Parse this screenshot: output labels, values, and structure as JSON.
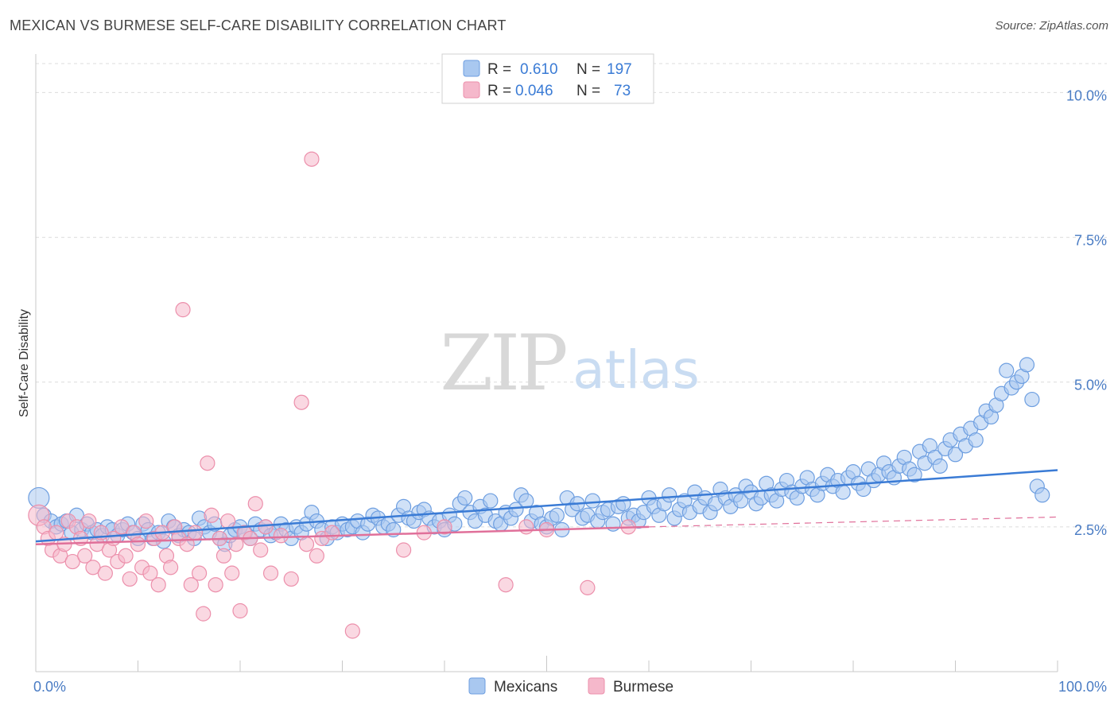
{
  "title": "MEXICAN VS BURMESE SELF-CARE DISABILITY CORRELATION CHART",
  "source": "Source: ZipAtlas.com",
  "watermark": {
    "zip": "ZIP",
    "atlas": "atlas"
  },
  "colors": {
    "blue_fill": "#a9c8f0",
    "blue_stroke": "#6d9ee0",
    "blue_line": "#3a7bd5",
    "pink_fill": "#f5b8cb",
    "pink_stroke": "#ec8fab",
    "pink_line": "#e0709a",
    "tick_text": "#4a7cc4",
    "legend_value": "#3a7bd5"
  },
  "chart_data": {
    "type": "scatter",
    "title": "MEXICAN VS BURMESE SELF-CARE DISABILITY CORRELATION CHART",
    "xlabel": "",
    "ylabel": "Self-Care Disability",
    "xlim": [
      0,
      100
    ],
    "ylim": [
      0,
      10.5
    ],
    "x_tick_labels": [
      "0.0%",
      "100.0%"
    ],
    "y_ticks": [
      {
        "value": 2.5,
        "label": "2.5%"
      },
      {
        "value": 5.0,
        "label": "5.0%"
      },
      {
        "value": 7.5,
        "label": "7.5%"
      },
      {
        "value": 10.0,
        "label": "10.0%"
      }
    ],
    "grid": true,
    "legend": [
      {
        "series": "Mexicans",
        "r_label": "R =",
        "r_value": "0.610",
        "n_label": "N =",
        "n_value": "197"
      },
      {
        "series": "Burmese",
        "r_label": "R =",
        "r_value": "0.046",
        "n_label": "N =",
        "n_value": "73"
      }
    ],
    "series": [
      {
        "name": "Mexicans",
        "trend": {
          "x": [
            0,
            100
          ],
          "y": [
            2.25,
            3.48
          ]
        },
        "points": [
          [
            0.3,
            3.0
          ],
          [
            0.8,
            2.7
          ],
          [
            1.5,
            2.6
          ],
          [
            2.0,
            2.5
          ],
          [
            2.5,
            2.55
          ],
          [
            3.0,
            2.6
          ],
          [
            3.5,
            2.4
          ],
          [
            4.0,
            2.7
          ],
          [
            4.5,
            2.45
          ],
          [
            5.0,
            2.55
          ],
          [
            5.5,
            2.4
          ],
          [
            6.0,
            2.45
          ],
          [
            6.5,
            2.35
          ],
          [
            7.0,
            2.5
          ],
          [
            7.5,
            2.45
          ],
          [
            8.0,
            2.35
          ],
          [
            8.5,
            2.45
          ],
          [
            9.0,
            2.55
          ],
          [
            9.5,
            2.4
          ],
          [
            10.0,
            2.3
          ],
          [
            10.5,
            2.55
          ],
          [
            11.0,
            2.45
          ],
          [
            11.5,
            2.3
          ],
          [
            12.0,
            2.4
          ],
          [
            12.5,
            2.25
          ],
          [
            13.0,
            2.6
          ],
          [
            13.5,
            2.5
          ],
          [
            14.0,
            2.35
          ],
          [
            14.5,
            2.45
          ],
          [
            15.0,
            2.4
          ],
          [
            15.5,
            2.3
          ],
          [
            16.0,
            2.65
          ],
          [
            16.5,
            2.5
          ],
          [
            17.0,
            2.4
          ],
          [
            17.5,
            2.55
          ],
          [
            18.0,
            2.3
          ],
          [
            18.5,
            2.2
          ],
          [
            19.0,
            2.35
          ],
          [
            19.5,
            2.45
          ],
          [
            20.0,
            2.5
          ],
          [
            20.5,
            2.4
          ],
          [
            21.0,
            2.3
          ],
          [
            21.5,
            2.55
          ],
          [
            22.0,
            2.45
          ],
          [
            22.5,
            2.5
          ],
          [
            23.0,
            2.35
          ],
          [
            23.5,
            2.4
          ],
          [
            24.0,
            2.55
          ],
          [
            24.5,
            2.45
          ],
          [
            25.0,
            2.3
          ],
          [
            25.5,
            2.5
          ],
          [
            26.0,
            2.4
          ],
          [
            26.5,
            2.55
          ],
          [
            27.0,
            2.75
          ],
          [
            27.5,
            2.6
          ],
          [
            28.0,
            2.45
          ],
          [
            28.5,
            2.3
          ],
          [
            29.0,
            2.5
          ],
          [
            29.5,
            2.4
          ],
          [
            30.0,
            2.55
          ],
          [
            30.5,
            2.45
          ],
          [
            31.0,
            2.5
          ],
          [
            31.5,
            2.6
          ],
          [
            32.0,
            2.4
          ],
          [
            32.5,
            2.55
          ],
          [
            33.0,
            2.7
          ],
          [
            33.5,
            2.65
          ],
          [
            34.0,
            2.5
          ],
          [
            34.5,
            2.55
          ],
          [
            35.0,
            2.45
          ],
          [
            35.5,
            2.7
          ],
          [
            36.0,
            2.85
          ],
          [
            36.5,
            2.65
          ],
          [
            37.0,
            2.6
          ],
          [
            37.5,
            2.75
          ],
          [
            38.0,
            2.8
          ],
          [
            38.5,
            2.65
          ],
          [
            39.0,
            2.5
          ],
          [
            39.5,
            2.6
          ],
          [
            40.0,
            2.45
          ],
          [
            40.5,
            2.7
          ],
          [
            41.0,
            2.55
          ],
          [
            41.5,
            2.9
          ],
          [
            42.0,
            3.0
          ],
          [
            42.5,
            2.75
          ],
          [
            43.0,
            2.6
          ],
          [
            43.5,
            2.85
          ],
          [
            44.0,
            2.7
          ],
          [
            44.5,
            2.95
          ],
          [
            45.0,
            2.6
          ],
          [
            45.5,
            2.55
          ],
          [
            46.0,
            2.75
          ],
          [
            46.5,
            2.65
          ],
          [
            47.0,
            2.8
          ],
          [
            47.5,
            3.05
          ],
          [
            48.0,
            2.95
          ],
          [
            48.5,
            2.6
          ],
          [
            49.0,
            2.75
          ],
          [
            49.5,
            2.55
          ],
          [
            50.0,
            2.5
          ],
          [
            50.5,
            2.65
          ],
          [
            51.0,
            2.7
          ],
          [
            51.5,
            2.45
          ],
          [
            52.0,
            3.0
          ],
          [
            52.5,
            2.8
          ],
          [
            53.0,
            2.9
          ],
          [
            53.5,
            2.65
          ],
          [
            54.0,
            2.7
          ],
          [
            54.5,
            2.95
          ],
          [
            55.0,
            2.6
          ],
          [
            55.5,
            2.75
          ],
          [
            56.0,
            2.8
          ],
          [
            56.5,
            2.55
          ],
          [
            57.0,
            2.85
          ],
          [
            57.5,
            2.9
          ],
          [
            58.0,
            2.65
          ],
          [
            58.5,
            2.7
          ],
          [
            59.0,
            2.6
          ],
          [
            59.5,
            2.75
          ],
          [
            60.0,
            3.0
          ],
          [
            60.5,
            2.85
          ],
          [
            61.0,
            2.7
          ],
          [
            61.5,
            2.9
          ],
          [
            62.0,
            3.05
          ],
          [
            62.5,
            2.65
          ],
          [
            63.0,
            2.8
          ],
          [
            63.5,
            2.95
          ],
          [
            64.0,
            2.75
          ],
          [
            64.5,
            3.1
          ],
          [
            65.0,
            2.85
          ],
          [
            65.5,
            3.0
          ],
          [
            66.0,
            2.75
          ],
          [
            66.5,
            2.9
          ],
          [
            67.0,
            3.15
          ],
          [
            67.5,
            3.0
          ],
          [
            68.0,
            2.85
          ],
          [
            68.5,
            3.05
          ],
          [
            69.0,
            2.95
          ],
          [
            69.5,
            3.2
          ],
          [
            70.0,
            3.1
          ],
          [
            70.5,
            2.9
          ],
          [
            71.0,
            3.0
          ],
          [
            71.5,
            3.25
          ],
          [
            72.0,
            3.05
          ],
          [
            72.5,
            2.95
          ],
          [
            73.0,
            3.15
          ],
          [
            73.5,
            3.3
          ],
          [
            74.0,
            3.1
          ],
          [
            74.5,
            3.0
          ],
          [
            75.0,
            3.2
          ],
          [
            75.5,
            3.35
          ],
          [
            76.0,
            3.15
          ],
          [
            76.5,
            3.05
          ],
          [
            77.0,
            3.25
          ],
          [
            77.5,
            3.4
          ],
          [
            78.0,
            3.2
          ],
          [
            78.5,
            3.3
          ],
          [
            79.0,
            3.1
          ],
          [
            79.5,
            3.35
          ],
          [
            80.0,
            3.45
          ],
          [
            80.5,
            3.25
          ],
          [
            81.0,
            3.15
          ],
          [
            81.5,
            3.5
          ],
          [
            82.0,
            3.3
          ],
          [
            82.5,
            3.4
          ],
          [
            83.0,
            3.6
          ],
          [
            83.5,
            3.45
          ],
          [
            84.0,
            3.35
          ],
          [
            84.5,
            3.55
          ],
          [
            85.0,
            3.7
          ],
          [
            85.5,
            3.5
          ],
          [
            86.0,
            3.4
          ],
          [
            86.5,
            3.8
          ],
          [
            87.0,
            3.6
          ],
          [
            87.5,
            3.9
          ],
          [
            88.0,
            3.7
          ],
          [
            88.5,
            3.55
          ],
          [
            89.0,
            3.85
          ],
          [
            89.5,
            4.0
          ],
          [
            90.0,
            3.75
          ],
          [
            90.5,
            4.1
          ],
          [
            91.0,
            3.9
          ],
          [
            91.5,
            4.2
          ],
          [
            92.0,
            4.0
          ],
          [
            92.5,
            4.3
          ],
          [
            93.0,
            4.5
          ],
          [
            93.5,
            4.4
          ],
          [
            94.0,
            4.6
          ],
          [
            94.5,
            4.8
          ],
          [
            95.0,
            5.2
          ],
          [
            95.5,
            4.9
          ],
          [
            96.0,
            5.0
          ],
          [
            96.5,
            5.1
          ],
          [
            97.0,
            5.3
          ],
          [
            97.5,
            4.7
          ],
          [
            98.0,
            3.2
          ],
          [
            98.5,
            3.05
          ]
        ]
      },
      {
        "name": "Burmese",
        "trend": {
          "x": [
            0,
            60
          ],
          "y": [
            2.2,
            2.5
          ]
        },
        "trend_dashed": {
          "x": [
            60,
            100
          ],
          "y": [
            2.5,
            2.67
          ]
        },
        "points": [
          [
            0.3,
            2.7
          ],
          [
            0.8,
            2.5
          ],
          [
            1.2,
            2.3
          ],
          [
            1.6,
            2.1
          ],
          [
            2.0,
            2.4
          ],
          [
            2.4,
            2.0
          ],
          [
            2.8,
            2.2
          ],
          [
            3.2,
            2.6
          ],
          [
            3.6,
            1.9
          ],
          [
            4.0,
            2.5
          ],
          [
            4.4,
            2.3
          ],
          [
            4.8,
            2.0
          ],
          [
            5.2,
            2.6
          ],
          [
            5.6,
            1.8
          ],
          [
            6.0,
            2.2
          ],
          [
            6.4,
            2.4
          ],
          [
            6.8,
            1.7
          ],
          [
            7.2,
            2.1
          ],
          [
            7.6,
            2.3
          ],
          [
            8.0,
            1.9
          ],
          [
            8.4,
            2.5
          ],
          [
            8.8,
            2.0
          ],
          [
            9.2,
            1.6
          ],
          [
            9.6,
            2.4
          ],
          [
            10.0,
            2.2
          ],
          [
            10.4,
            1.8
          ],
          [
            10.8,
            2.6
          ],
          [
            11.2,
            1.7
          ],
          [
            11.6,
            2.3
          ],
          [
            12.0,
            1.5
          ],
          [
            12.4,
            2.4
          ],
          [
            12.8,
            2.0
          ],
          [
            13.2,
            1.8
          ],
          [
            13.6,
            2.5
          ],
          [
            14.0,
            2.3
          ],
          [
            14.4,
            6.25
          ],
          [
            14.8,
            2.2
          ],
          [
            15.2,
            1.5
          ],
          [
            15.6,
            2.4
          ],
          [
            16.0,
            1.7
          ],
          [
            16.4,
            1.0
          ],
          [
            16.8,
            3.6
          ],
          [
            17.2,
            2.7
          ],
          [
            17.6,
            1.5
          ],
          [
            18.0,
            2.3
          ],
          [
            18.4,
            2.0
          ],
          [
            18.8,
            2.6
          ],
          [
            19.2,
            1.7
          ],
          [
            19.6,
            2.2
          ],
          [
            20.0,
            1.05
          ],
          [
            20.4,
            2.4
          ],
          [
            21.0,
            2.3
          ],
          [
            21.5,
            2.9
          ],
          [
            22.0,
            2.1
          ],
          [
            22.5,
            2.5
          ],
          [
            23.0,
            1.7
          ],
          [
            24.0,
            2.35
          ],
          [
            25.0,
            1.6
          ],
          [
            26.0,
            4.65
          ],
          [
            26.5,
            2.2
          ],
          [
            27.0,
            8.85
          ],
          [
            27.5,
            2.0
          ],
          [
            28.0,
            2.3
          ],
          [
            29.0,
            2.4
          ],
          [
            31.0,
            0.7
          ],
          [
            36.0,
            2.1
          ],
          [
            38.0,
            2.4
          ],
          [
            40.0,
            2.5
          ],
          [
            46.0,
            1.5
          ],
          [
            48.0,
            2.5
          ],
          [
            50.0,
            2.45
          ],
          [
            54.0,
            1.45
          ],
          [
            58.0,
            2.5
          ]
        ]
      }
    ]
  },
  "bottom_legend": [
    {
      "label": "Mexicans"
    },
    {
      "label": "Burmese"
    }
  ]
}
